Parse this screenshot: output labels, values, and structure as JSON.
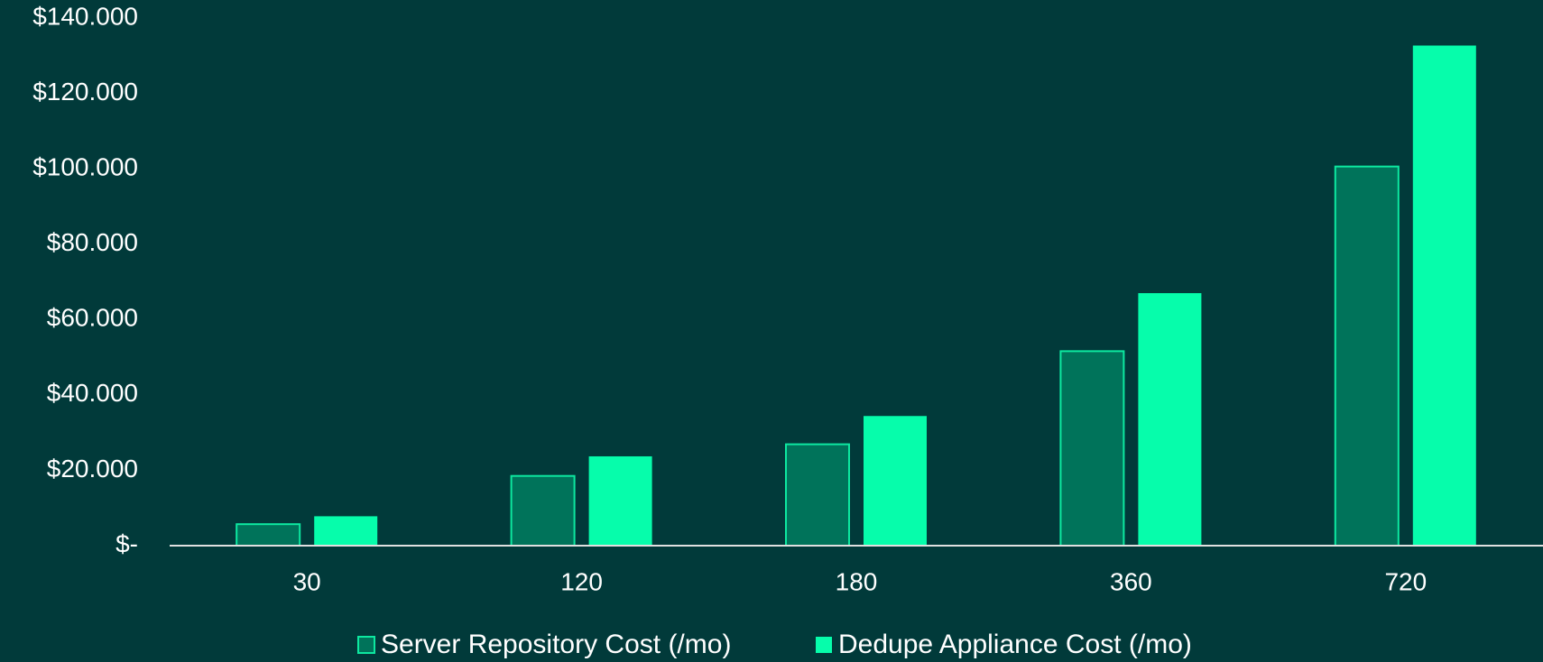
{
  "chart_data": {
    "type": "bar",
    "categories": [
      "30",
      "120",
      "180",
      "360",
      "720"
    ],
    "series": [
      {
        "name": "Server Repository Cost (/mo)",
        "color": "#00735a",
        "values": [
          5700,
          18500,
          26900,
          51600,
          100600
        ]
      },
      {
        "name": "Dedupe Appliance Cost (/mo)",
        "color": "#06fdab",
        "values": [
          7800,
          23700,
          34400,
          67000,
          132700
        ]
      }
    ],
    "ylim": [
      0,
      140000
    ],
    "yticks": [
      {
        "value": 0,
        "label": "$-"
      },
      {
        "value": 20000,
        "label": "$20.000"
      },
      {
        "value": 40000,
        "label": "$40.000"
      },
      {
        "value": 60000,
        "label": "$60.000"
      },
      {
        "value": 80000,
        "label": "$80.000"
      },
      {
        "value": 100000,
        "label": "$100.000"
      },
      {
        "value": 120000,
        "label": "$120.000"
      },
      {
        "value": 140000,
        "label": "$140.000"
      }
    ],
    "legend": "bottom"
  }
}
